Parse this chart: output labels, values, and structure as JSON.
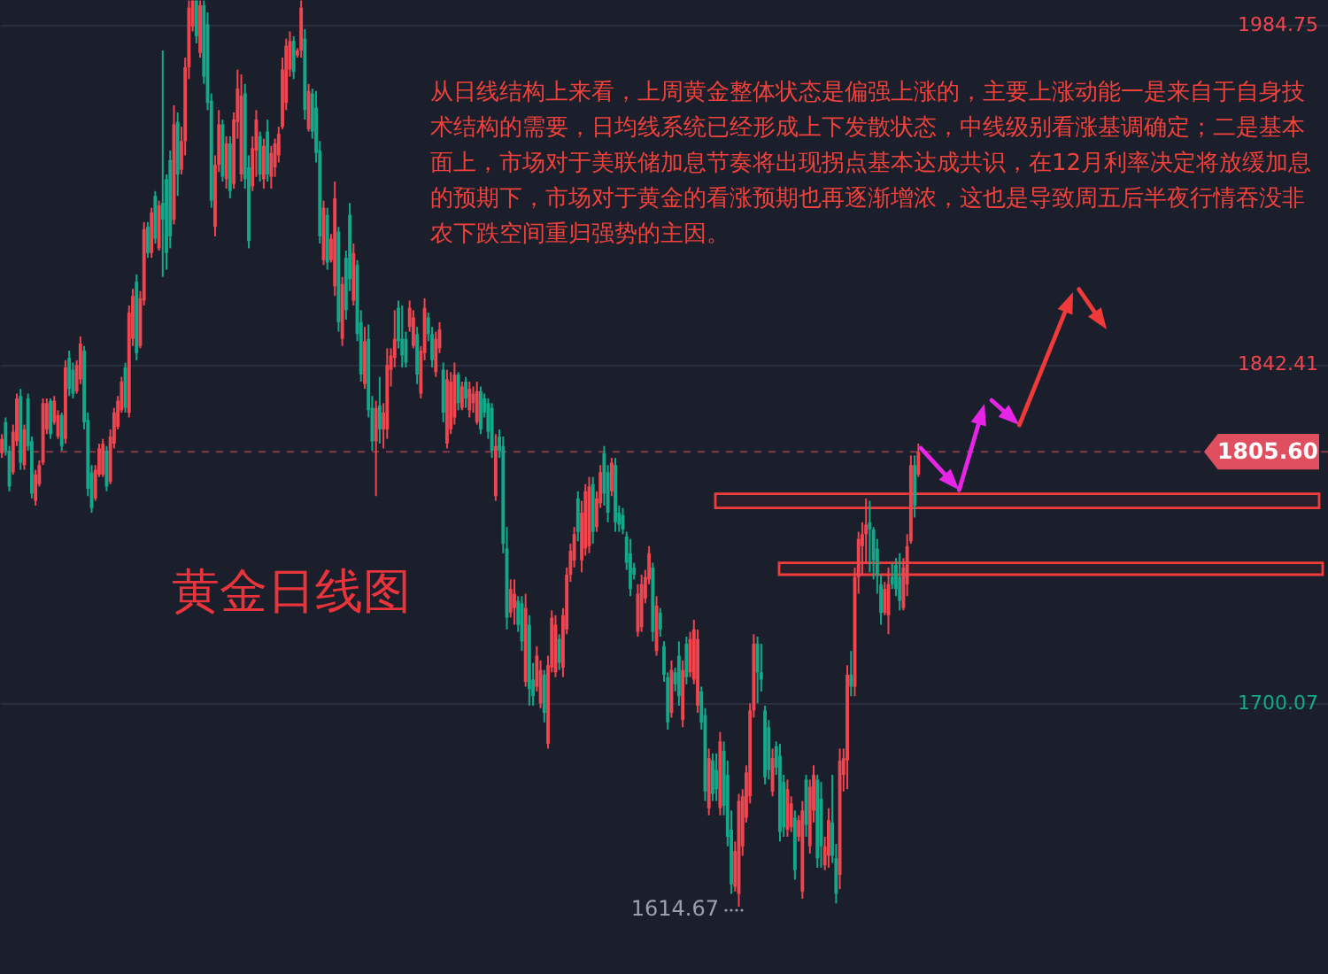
{
  "chart_data": {
    "type": "candlestick",
    "title": "黄金日线图",
    "annotations": [
      "从日线结构上来看，上周黄金整体状态是偏强上涨的，主要上涨动能一是来自于自身技术结构的需要，日均线系统已经形成上下发散状态，中线级别看涨基调确定；二是基本面上，市场对于美联储加息节奏将出现拐点基本达成共识，在12月利率决定将放缓加息的预期下，市场对于黄金的看涨预期也再逐渐增浓，这也是导致周五后半夜行情吞没非农下跌空间重归强势的主因。",
      "1614.67"
    ],
    "categories": [
      null,
      null,
      null,
      null,
      null,
      null,
      null,
      null,
      null,
      null,
      null,
      null,
      null,
      null,
      null,
      null,
      null,
      null,
      null,
      null,
      null,
      null,
      null,
      null,
      null,
      null,
      null,
      null,
      null,
      null,
      null,
      null,
      null,
      null,
      null,
      null,
      null,
      null,
      null,
      null,
      null,
      null,
      null,
      null,
      null,
      null,
      null,
      null,
      null,
      null,
      null,
      null,
      null,
      null,
      null,
      null,
      null,
      null,
      null,
      null,
      null,
      null,
      null,
      null,
      null,
      null,
      null,
      null,
      null,
      null,
      null,
      null,
      null,
      null,
      null,
      null,
      null,
      null,
      null,
      null,
      null,
      null,
      null,
      null,
      null,
      null,
      null,
      null,
      null,
      null,
      null,
      null,
      null,
      null,
      null,
      null,
      null,
      null,
      null,
      null,
      null,
      null,
      null,
      null,
      null,
      null,
      null,
      null,
      null,
      null,
      null,
      null,
      null,
      null,
      null,
      null,
      null,
      null,
      null,
      null,
      null,
      null,
      null,
      null,
      null,
      null,
      null,
      null,
      null,
      null,
      null,
      null,
      null,
      null,
      null,
      null,
      null,
      null,
      null,
      null,
      null,
      null,
      null,
      null,
      null,
      null,
      null,
      null,
      null,
      null,
      null,
      null,
      null,
      null,
      null,
      null,
      null,
      null,
      null,
      null,
      null,
      null,
      null,
      null,
      null,
      null,
      null,
      null,
      null,
      null,
      null,
      null,
      null,
      null,
      null,
      null,
      null,
      null,
      null,
      null,
      null,
      null,
      null,
      null,
      null,
      null,
      null,
      null,
      null,
      null,
      null,
      null,
      null,
      null,
      null,
      null,
      null,
      null,
      null,
      null,
      null,
      null,
      null,
      null,
      null,
      null,
      null,
      null,
      null,
      null,
      null,
      null,
      null,
      null,
      null,
      null,
      null,
      null,
      null,
      null,
      null,
      null,
      null,
      null,
      null,
      null,
      null,
      null,
      null,
      null,
      null,
      null,
      null,
      null,
      null,
      null,
      null,
      null,
      null,
      null,
      null,
      null,
      null,
      null,
      null,
      null,
      null,
      null,
      null,
      null,
      null,
      null,
      null,
      null,
      null,
      null,
      null,
      null,
      null,
      null,
      null,
      null,
      null,
      null,
      null,
      null,
      null,
      null,
      null,
      null,
      null,
      null,
      null,
      null,
      null,
      null,
      null,
      null,
      null,
      null,
      null,
      null,
      null,
      null,
      null,
      null,
      null,
      null,
      null,
      null,
      null,
      null,
      null,
      null,
      null,
      null,
      null,
      null,
      null,
      null,
      null,
      null,
      null,
      null,
      null,
      null,
      null,
      null,
      null,
      null,
      null,
      null,
      null,
      null,
      null,
      null,
      null,
      null,
      null,
      null,
      null,
      null,
      null,
      null,
      null,
      null,
      null,
      null,
      null,
      null,
      null,
      null,
      null,
      null,
      null,
      null,
      null,
      null,
      null,
      null,
      null,
      null,
      null,
      null,
      null,
      null,
      null,
      null,
      null,
      null,
      null,
      null,
      null,
      null,
      null
    ],
    "ohlc": [
      [
        1805,
        1813,
        1803,
        1811
      ],
      [
        1818,
        1820,
        1804,
        1806
      ],
      [
        1806,
        1808,
        1789,
        1791
      ],
      [
        1797,
        1817,
        1796,
        1814
      ],
      [
        1810,
        1830,
        1808,
        1828
      ],
      [
        1829,
        1832,
        1798,
        1801
      ],
      [
        1800,
        1817,
        1798,
        1815
      ],
      [
        1828,
        1830,
        1806,
        1808
      ],
      [
        1810,
        1812,
        1786,
        1788
      ],
      [
        1785,
        1798,
        1783,
        1796
      ],
      [
        1792,
        1802,
        1791,
        1800
      ],
      [
        1801,
        1828,
        1800,
        1826
      ],
      [
        1815,
        1828,
        1813,
        1826
      ],
      [
        1827,
        1828,
        1811,
        1813
      ],
      [
        1818,
        1829,
        1817,
        1827
      ],
      [
        1812,
        1823,
        1811,
        1821
      ],
      [
        1821,
        1822,
        1806,
        1808
      ],
      [
        1811,
        1844,
        1809,
        1841
      ],
      [
        1845,
        1848,
        1829,
        1832
      ],
      [
        1840,
        1843,
        1828,
        1830
      ],
      [
        1831,
        1844,
        1830,
        1842
      ],
      [
        1836,
        1854,
        1834,
        1851
      ],
      [
        1848,
        1850,
        1815,
        1818
      ],
      [
        1819,
        1822,
        1787,
        1790
      ],
      [
        1797,
        1800,
        1780,
        1782
      ],
      [
        1786,
        1800,
        1785,
        1798
      ],
      [
        1796,
        1809,
        1795,
        1807
      ],
      [
        1796,
        1811,
        1795,
        1809
      ],
      [
        1806,
        1808,
        1789,
        1791
      ],
      [
        1793,
        1815,
        1792,
        1812
      ],
      [
        1809,
        1824,
        1807,
        1822
      ],
      [
        1816,
        1829,
        1815,
        1827
      ],
      [
        1823,
        1837,
        1822,
        1835
      ],
      [
        1841,
        1843,
        1822,
        1824
      ],
      [
        1822,
        1867,
        1820,
        1864
      ],
      [
        1853,
        1874,
        1850,
        1871
      ],
      [
        1877,
        1880,
        1844,
        1847
      ],
      [
        1850,
        1873,
        1849,
        1870
      ],
      [
        1869,
        1902,
        1867,
        1899
      ],
      [
        1900,
        1902,
        1887,
        1889
      ],
      [
        1889,
        1908,
        1887,
        1906
      ],
      [
        1913,
        1915,
        1893,
        1895
      ],
      [
        1891,
        1911,
        1890,
        1909
      ],
      [
        1910,
        1974,
        1879,
        1903
      ],
      [
        1920,
        1922,
        1882,
        1889
      ],
      [
        1928,
        1932,
        1891,
        1896
      ],
      [
        1903,
        1951,
        1901,
        1943
      ],
      [
        1944,
        1948,
        1913,
        1922
      ],
      [
        1924,
        1942,
        1922,
        1936
      ],
      [
        1936,
        1971,
        1930,
        1967
      ],
      [
        1967,
        1995,
        1962,
        1992
      ],
      [
        1984,
        1995,
        1982,
        1995
      ],
      [
        1995,
        1995,
        1977,
        1980
      ],
      [
        1973,
        1995,
        1971,
        1993
      ],
      [
        1993,
        1995,
        1960,
        1963
      ],
      [
        1985,
        1990,
        1949,
        1952
      ],
      [
        1953,
        1956,
        1908,
        1911
      ],
      [
        1900,
        1930,
        1896,
        1926
      ],
      [
        1926,
        1949,
        1923,
        1943
      ],
      [
        1943,
        1945,
        1919,
        1921
      ],
      [
        1920,
        1938,
        1916,
        1935
      ],
      [
        1935,
        1938,
        1912,
        1915
      ],
      [
        1918,
        1948,
        1916,
        1945
      ],
      [
        1944,
        1966,
        1937,
        1958
      ],
      [
        1922,
        1964,
        1919,
        1955
      ],
      [
        1956,
        1960,
        1916,
        1920
      ],
      [
        1925,
        1930,
        1891,
        1894
      ],
      [
        1917,
        1938,
        1915,
        1933
      ],
      [
        1932,
        1949,
        1921,
        1945
      ],
      [
        1938,
        1940,
        1919,
        1922
      ],
      [
        1920,
        1937,
        1916,
        1934
      ],
      [
        1940,
        1945,
        1919,
        1922
      ],
      [
        1921,
        1934,
        1916,
        1931
      ],
      [
        1925,
        1937,
        1921,
        1935
      ],
      [
        1930,
        1942,
        1927,
        1939
      ],
      [
        1942,
        1971,
        1941,
        1966
      ],
      [
        1952,
        1979,
        1949,
        1976
      ],
      [
        1966,
        1982,
        1963,
        1978
      ],
      [
        1978,
        1980,
        1962,
        1965
      ],
      [
        1972,
        1975,
        1971,
        1974
      ],
      [
        1974,
        1995,
        1971,
        1992
      ],
      [
        1979,
        1983,
        1945,
        1949
      ],
      [
        1941,
        1960,
        1940,
        1957
      ],
      [
        1956,
        1958,
        1937,
        1940
      ],
      [
        1950,
        1957,
        1927,
        1931
      ],
      [
        1932,
        1936,
        1893,
        1896
      ],
      [
        1886,
        1911,
        1884,
        1908
      ],
      [
        1905,
        1908,
        1882,
        1885
      ],
      [
        1886,
        1897,
        1885,
        1895
      ],
      [
        1875,
        1919,
        1871,
        1912
      ],
      [
        1898,
        1900,
        1856,
        1860
      ],
      [
        1853,
        1879,
        1850,
        1876
      ],
      [
        1887,
        1890,
        1861,
        1865
      ],
      [
        1905,
        1910,
        1873,
        1878
      ],
      [
        1869,
        1893,
        1867,
        1889
      ],
      [
        1884,
        1886,
        1852,
        1855
      ],
      [
        1860,
        1865,
        1835,
        1838
      ],
      [
        1834,
        1858,
        1832,
        1852
      ],
      [
        1853,
        1859,
        1820,
        1823
      ],
      [
        1824,
        1829,
        1806,
        1810
      ],
      [
        1810,
        1827,
        1787,
        1824
      ],
      [
        1825,
        1837,
        1809,
        1815
      ],
      [
        1815,
        1826,
        1807,
        1822
      ],
      [
        1815,
        1849,
        1811,
        1842
      ],
      [
        1840,
        1849,
        1833,
        1846
      ],
      [
        1845,
        1865,
        1841,
        1853
      ],
      [
        1866,
        1869,
        1849,
        1852
      ],
      [
        1853,
        1867,
        1841,
        1846
      ],
      [
        1853,
        1856,
        1841,
        1843
      ],
      [
        1858,
        1869,
        1856,
        1866
      ],
      [
        1850,
        1865,
        1849,
        1862
      ],
      [
        1855,
        1858,
        1834,
        1838
      ],
      [
        1830,
        1850,
        1828,
        1848
      ],
      [
        1847,
        1870,
        1844,
        1866
      ],
      [
        1862,
        1864,
        1852,
        1855
      ],
      [
        1855,
        1858,
        1841,
        1844
      ],
      [
        1839,
        1856,
        1837,
        1853
      ],
      [
        1849,
        1860,
        1847,
        1857
      ],
      [
        1840,
        1843,
        1818,
        1822
      ],
      [
        1809,
        1840,
        1807,
        1836
      ],
      [
        1815,
        1839,
        1813,
        1835
      ],
      [
        1820,
        1843,
        1817,
        1838
      ],
      [
        1838,
        1839,
        1823,
        1826
      ],
      [
        1824,
        1835,
        1823,
        1833
      ],
      [
        1835,
        1837,
        1824,
        1828
      ],
      [
        1823,
        1835,
        1820,
        1832
      ],
      [
        1826,
        1833,
        1822,
        1830
      ],
      [
        1818,
        1835,
        1817,
        1831
      ],
      [
        1831,
        1833,
        1813,
        1815
      ],
      [
        1828,
        1830,
        1820,
        1822
      ],
      [
        1826,
        1828,
        1811,
        1814
      ],
      [
        1824,
        1826,
        1803,
        1806
      ],
      [
        1787,
        1813,
        1785,
        1808
      ],
      [
        1812,
        1815,
        1803,
        1806
      ],
      [
        1808,
        1812,
        1763,
        1767
      ],
      [
        1765,
        1774,
        1731,
        1736
      ],
      [
        1738,
        1752,
        1736,
        1748
      ],
      [
        1740,
        1752,
        1733,
        1746
      ],
      [
        1743,
        1745,
        1730,
        1733
      ],
      [
        1742,
        1745,
        1722,
        1726
      ],
      [
        1709,
        1746,
        1707,
        1740
      ],
      [
        1733,
        1737,
        1699,
        1706
      ],
      [
        1710,
        1717,
        1699,
        1703
      ],
      [
        1707,
        1724,
        1705,
        1720
      ],
      [
        1700,
        1718,
        1698,
        1714
      ],
      [
        1712,
        1714,
        1692,
        1696
      ],
      [
        1683,
        1720,
        1681,
        1716
      ],
      [
        1715,
        1739,
        1713,
        1736
      ],
      [
        1713,
        1737,
        1711,
        1733
      ],
      [
        1727,
        1729,
        1714,
        1717
      ],
      [
        1715,
        1740,
        1711,
        1737
      ],
      [
        1731,
        1757,
        1729,
        1754
      ],
      [
        1754,
        1767,
        1751,
        1764
      ],
      [
        1760,
        1774,
        1757,
        1771
      ],
      [
        1786,
        1789,
        1768,
        1772
      ],
      [
        1760,
        1785,
        1755,
        1780
      ],
      [
        1765,
        1792,
        1762,
        1789
      ],
      [
        1766,
        1795,
        1763,
        1791
      ],
      [
        1792,
        1795,
        1767,
        1772
      ],
      [
        1774,
        1789,
        1772,
        1786
      ],
      [
        1784,
        1800,
        1782,
        1797
      ],
      [
        1805,
        1808,
        1783,
        1788
      ],
      [
        1797,
        1800,
        1776,
        1780
      ],
      [
        1789,
        1803,
        1787,
        1801
      ],
      [
        1800,
        1803,
        1772,
        1776
      ],
      [
        1780,
        1783,
        1772,
        1775
      ],
      [
        1779,
        1782,
        1771,
        1773
      ],
      [
        1770,
        1772,
        1756,
        1759
      ],
      [
        1763,
        1769,
        1745,
        1748
      ],
      [
        1757,
        1759,
        1752,
        1754
      ],
      [
        1730,
        1750,
        1728,
        1746
      ],
      [
        1732,
        1754,
        1730,
        1750
      ],
      [
        1744,
        1756,
        1742,
        1753
      ],
      [
        1752,
        1766,
        1750,
        1763
      ],
      [
        1757,
        1759,
        1726,
        1730
      ],
      [
        1722,
        1745,
        1720,
        1741
      ],
      [
        1738,
        1740,
        1728,
        1731
      ],
      [
        1724,
        1726,
        1709,
        1712
      ],
      [
        1711,
        1713,
        1689,
        1692
      ],
      [
        1696,
        1718,
        1694,
        1714
      ],
      [
        1713,
        1715,
        1705,
        1708
      ],
      [
        1720,
        1726,
        1699,
        1703
      ],
      [
        1693,
        1718,
        1690,
        1714
      ],
      [
        1725,
        1728,
        1708,
        1711
      ],
      [
        1713,
        1730,
        1711,
        1727
      ],
      [
        1710,
        1735,
        1708,
        1731
      ],
      [
        1699,
        1731,
        1696,
        1727
      ],
      [
        1705,
        1707,
        1689,
        1692
      ],
      [
        1695,
        1698,
        1659,
        1663
      ],
      [
        1656,
        1681,
        1653,
        1677
      ],
      [
        1676,
        1679,
        1659,
        1662
      ],
      [
        1672,
        1679,
        1659,
        1664
      ],
      [
        1656,
        1688,
        1653,
        1684
      ],
      [
        1680,
        1684,
        1653,
        1657
      ],
      [
        1670,
        1676,
        1640,
        1644
      ],
      [
        1647,
        1655,
        1620,
        1624
      ],
      [
        1623,
        1642,
        1621,
        1638
      ],
      [
        1620,
        1662,
        1614.67,
        1659
      ],
      [
        1640,
        1664,
        1636,
        1661
      ],
      [
        1652,
        1674,
        1650,
        1671
      ],
      [
        1661,
        1700,
        1658,
        1697
      ],
      [
        1697,
        1729,
        1694,
        1725
      ],
      [
        1725,
        1728,
        1700,
        1713
      ],
      [
        1713,
        1725,
        1705,
        1710
      ],
      [
        1697,
        1699,
        1666,
        1669
      ],
      [
        1690,
        1693,
        1668,
        1672
      ],
      [
        1663,
        1681,
        1661,
        1677
      ],
      [
        1682,
        1684,
        1670,
        1673
      ],
      [
        1678,
        1683,
        1642,
        1646
      ],
      [
        1667,
        1670,
        1644,
        1648
      ],
      [
        1647,
        1668,
        1644,
        1664
      ],
      [
        1648,
        1661,
        1646,
        1658
      ],
      [
        1652,
        1655,
        1626,
        1630
      ],
      [
        1644,
        1653,
        1642,
        1651
      ],
      [
        1621,
        1659,
        1618,
        1655
      ],
      [
        1668,
        1670,
        1644,
        1649
      ],
      [
        1640,
        1668,
        1637,
        1665
      ],
      [
        1655,
        1674,
        1650,
        1670
      ],
      [
        1668,
        1670,
        1631,
        1635
      ],
      [
        1660,
        1667,
        1631,
        1640
      ],
      [
        1632,
        1644,
        1630,
        1640
      ],
      [
        1636,
        1656,
        1631,
        1651
      ],
      [
        1650,
        1670,
        1633,
        1636
      ],
      [
        1635,
        1641,
        1616,
        1620
      ],
      [
        1628,
        1681,
        1622,
        1676
      ],
      [
        1670,
        1681,
        1663,
        1677
      ],
      [
        1676,
        1716,
        1664,
        1712
      ],
      [
        1712,
        1722,
        1703,
        1707
      ],
      [
        1707,
        1757,
        1703,
        1753
      ],
      [
        1753,
        1772,
        1746,
        1769
      ],
      [
        1766,
        1776,
        1754,
        1771
      ],
      [
        1771,
        1786,
        1759,
        1775
      ],
      [
        1776,
        1785,
        1755,
        1773
      ],
      [
        1773,
        1774,
        1752,
        1760
      ],
      [
        1765,
        1769,
        1746,
        1754
      ],
      [
        1750,
        1754,
        1733,
        1738
      ],
      [
        1738,
        1751,
        1737,
        1748
      ],
      [
        1737,
        1757,
        1729,
        1750
      ],
      [
        1753,
        1759,
        1748,
        1750
      ],
      [
        1758,
        1761,
        1745,
        1748
      ],
      [
        1753,
        1763,
        1739,
        1743
      ],
      [
        1740,
        1761,
        1739,
        1757
      ],
      [
        1750,
        1771,
        1745,
        1766
      ],
      [
        1768,
        1804,
        1767,
        1800
      ],
      [
        1800,
        1804,
        1778,
        1783
      ],
      [
        1796,
        1809,
        1795,
        1805.6
      ],
      null,
      null,
      null,
      null,
      null,
      null,
      null,
      null,
      null,
      null,
      null,
      null,
      null,
      null,
      null,
      null,
      null,
      null,
      null,
      null,
      null,
      null,
      null,
      null,
      null,
      null,
      null,
      null,
      null,
      null,
      null,
      null,
      null,
      null,
      null,
      null,
      null,
      null,
      null,
      null,
      null,
      null,
      null,
      null,
      null,
      null,
      null,
      null,
      null,
      null,
      null,
      null,
      null,
      null,
      null,
      null,
      null,
      null,
      null,
      null,
      null,
      null,
      null,
      null,
      null,
      null,
      null,
      null,
      null,
      null,
      null,
      null,
      null,
      null,
      null,
      null,
      null,
      null,
      null,
      null,
      null,
      null,
      null,
      null,
      null,
      null,
      null,
      null,
      null,
      null,
      null,
      null,
      null,
      null,
      null,
      null,
      null,
      null,
      null,
      null,
      null,
      null,
      null,
      null,
      null,
      null,
      null,
      null,
      null
    ],
    "ylim": [
      1586.4,
      1995.2
    ],
    "yticks": [
      1984.75,
      1842.41,
      1700.07
    ],
    "grid": "y",
    "ref_lines": [
      {
        "axis": "y",
        "value": 1805.6,
        "label": "1805.60",
        "color": "#e04f5f",
        "line_style": "dashed"
      }
    ],
    "bands": [
      {
        "axis": "y",
        "from": 1782,
        "to": 1788,
        "color": "#f23b3b"
      },
      {
        "axis": "y",
        "from": 1754,
        "to": 1759,
        "color": "#f23b3b"
      }
    ]
  }
}
